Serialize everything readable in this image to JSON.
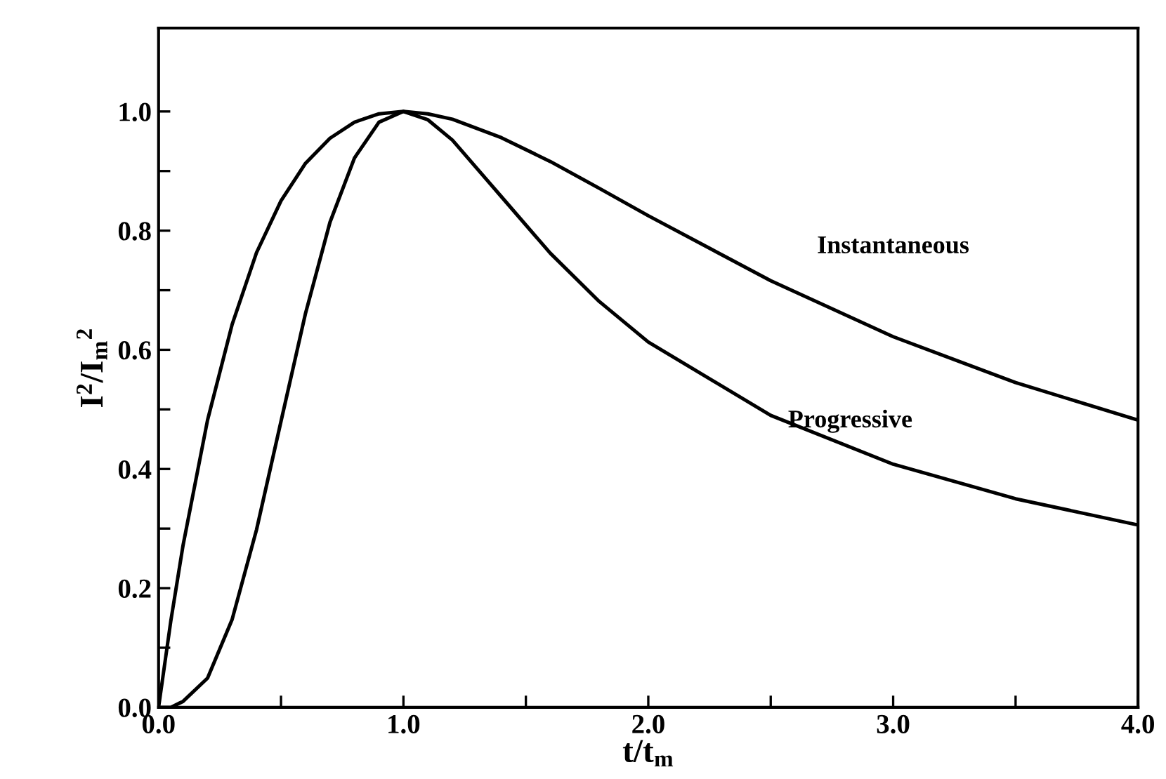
{
  "chart_data": {
    "type": "line",
    "xlabel": "t/t$_{m}$",
    "ylabel": "I$^{2}$/I$_{m}$$^{2}$",
    "x": [
      0,
      0.05,
      0.1,
      0.2,
      0.3,
      0.4,
      0.5,
      0.6,
      0.7,
      0.8,
      0.9,
      1.0,
      1.1,
      1.2,
      1.4,
      1.6,
      1.8,
      2.0,
      2.5,
      3.0,
      3.5,
      4.0
    ],
    "series": [
      {
        "name": "Instantaneous",
        "color": "#000000",
        "values": [
          0,
          0.145,
          0.272,
          0.482,
          0.642,
          0.763,
          0.85,
          0.913,
          0.955,
          0.982,
          0.996,
          1.0,
          0.996,
          0.987,
          0.956,
          0.916,
          0.871,
          0.825,
          0.716,
          0.622,
          0.545,
          0.482
        ]
      },
      {
        "name": "Progressive",
        "color": "#000000",
        "values": [
          0,
          0.0,
          0.01,
          0.049,
          0.147,
          0.298,
          0.48,
          0.661,
          0.814,
          0.922,
          0.982,
          1.0,
          0.986,
          0.952,
          0.857,
          0.762,
          0.681,
          0.613,
          0.49,
          0.408,
          0.35,
          0.306
        ]
      }
    ],
    "xlim": [
      0,
      4
    ],
    "xticks": [
      {
        "value": 0,
        "label": "0.0"
      },
      {
        "value": 0.5,
        "label": null
      },
      {
        "value": 1,
        "label": "1.0"
      },
      {
        "value": 1.5,
        "label": null
      },
      {
        "value": 2,
        "label": "2.0"
      },
      {
        "value": 2.5,
        "label": null
      },
      {
        "value": 3,
        "label": "3.0"
      },
      {
        "value": 3.5,
        "label": null
      },
      {
        "value": 4,
        "label": "4.0"
      }
    ],
    "ylim": [
      0,
      1.14
    ],
    "yticks": [
      {
        "value": 0,
        "label": "0.0"
      },
      {
        "value": 0.1,
        "label": null
      },
      {
        "value": 0.2,
        "label": "0.2"
      },
      {
        "value": 0.3,
        "label": null
      },
      {
        "value": 0.4,
        "label": "0.4"
      },
      {
        "value": 0.5,
        "label": null
      },
      {
        "value": 0.6,
        "label": "0.6"
      },
      {
        "value": 0.7,
        "label": null
      },
      {
        "value": 0.8,
        "label": "0.8"
      },
      {
        "value": 0.9,
        "label": null
      },
      {
        "value": 1.0,
        "label": "1.0"
      }
    ],
    "grid": false,
    "legend": false,
    "marker": "none",
    "line_style": "solid"
  }
}
